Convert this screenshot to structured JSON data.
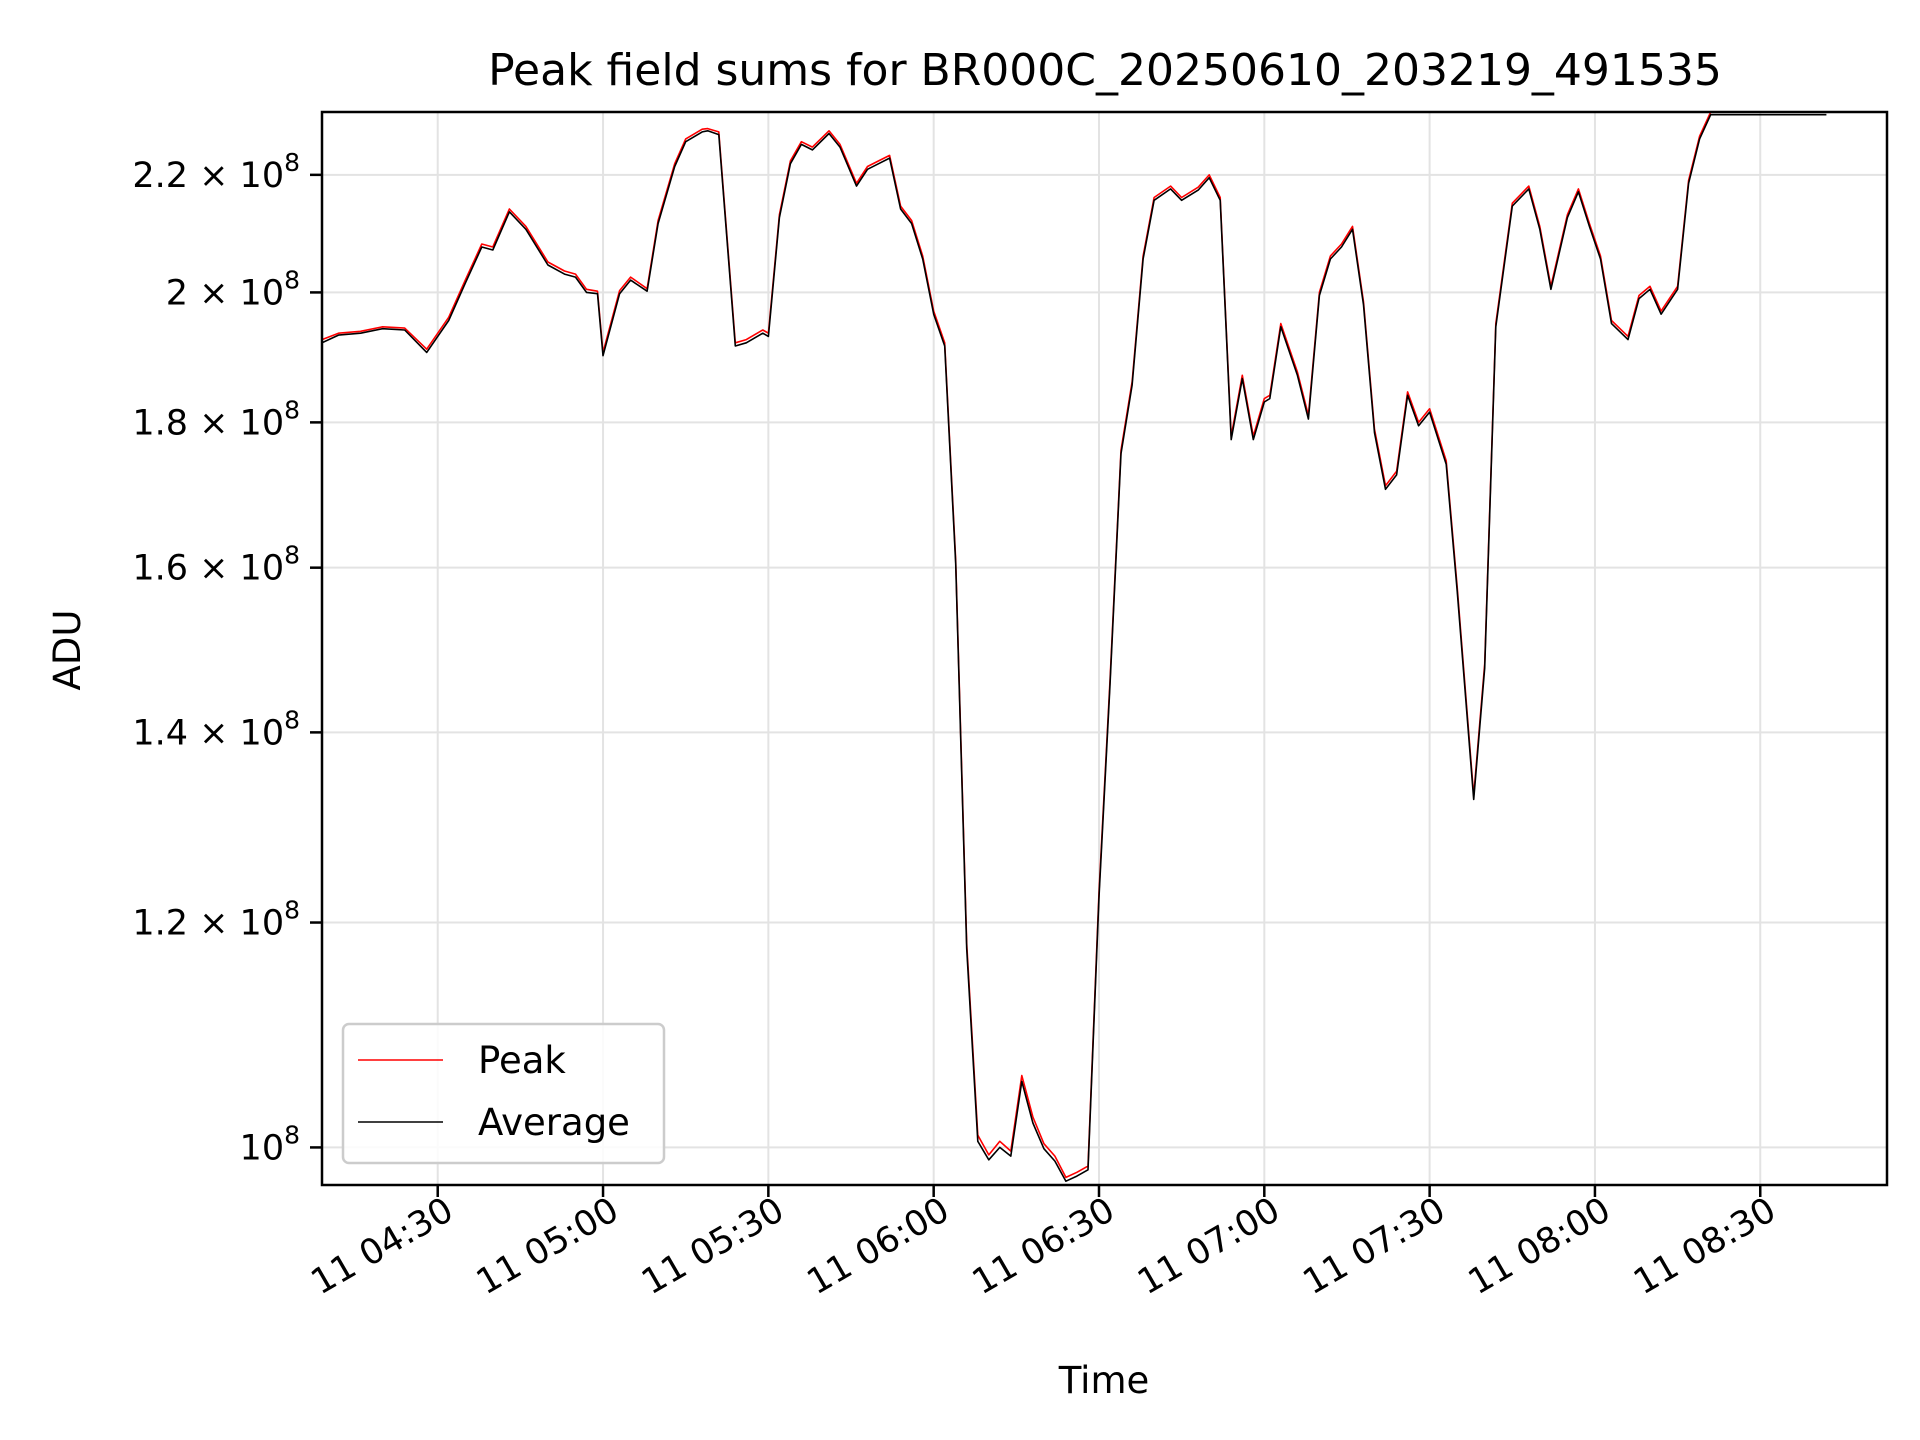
{
  "chart_data": {
    "type": "line",
    "title": "Peak field sums for BR000C_20250610_203219_491535",
    "xlabel": "Time",
    "ylabel": "ADU",
    "yscale": "log",
    "xlim": [
      "11 04:09",
      "11 08:53"
    ],
    "ylim": [
      97000000,
      231500000
    ],
    "grid": true,
    "legend_position": "lower-left",
    "x_ticks": [
      "11 04:30",
      "11 05:00",
      "11 05:30",
      "11 06:00",
      "11 06:30",
      "11 07:00",
      "11 07:30",
      "11 08:00",
      "11 08:30"
    ],
    "y_ticks": [
      {
        "value": 100000000,
        "mantissa": "",
        "exponent": "8"
      },
      {
        "value": 120000000,
        "mantissa": "1.2",
        "exponent": "8"
      },
      {
        "value": 140000000,
        "mantissa": "1.4",
        "exponent": "8"
      },
      {
        "value": 160000000,
        "mantissa": "1.6",
        "exponent": "8"
      },
      {
        "value": 180000000,
        "mantissa": "1.8",
        "exponent": "8"
      },
      {
        "value": 200000000,
        "mantissa": "2",
        "exponent": "8"
      },
      {
        "value": 220000000,
        "mantissa": "2.2",
        "exponent": "8"
      }
    ],
    "x": [
      "11 04:09",
      "11 04:12",
      "11 04:16",
      "11 04:20",
      "11 04:24",
      "11 04:28",
      "11 04:32",
      "11 04:35",
      "11 04:38",
      "11 04:40",
      "11 04:43",
      "11 04:46",
      "11 04:50",
      "11 04:53",
      "11 04:55",
      "11 04:57",
      "11 04:59",
      "11 05:00",
      "11 05:03",
      "11 05:05",
      "11 05:08",
      "11 05:10",
      "11 05:13",
      "11 05:15",
      "11 05:18",
      "11 05:19",
      "11 05:21",
      "11 05:24",
      "11 05:26",
      "11 05:29",
      "11 05:30",
      "11 05:32",
      "11 05:34",
      "11 05:36",
      "11 05:38",
      "11 05:41",
      "11 05:43",
      "11 05:46",
      "11 05:48",
      "11 05:50",
      "11 05:52",
      "11 05:54",
      "11 05:56",
      "11 05:58",
      "11 06:00",
      "11 06:02",
      "11 06:04",
      "11 06:06",
      "11 06:08",
      "11 06:10",
      "11 06:12",
      "11 06:14",
      "11 06:16",
      "11 06:18",
      "11 06:20",
      "11 06:22",
      "11 06:24",
      "11 06:26",
      "11 06:28",
      "11 06:30",
      "11 06:32",
      "11 06:34",
      "11 06:36",
      "11 06:38",
      "11 06:40",
      "11 06:43",
      "11 06:45",
      "11 06:48",
      "11 06:50",
      "11 06:52",
      "11 06:54",
      "11 06:56",
      "11 06:58",
      "11 07:00",
      "11 07:01",
      "11 07:03",
      "11 07:06",
      "11 07:08",
      "11 07:10",
      "11 07:12",
      "11 07:14",
      "11 07:16",
      "11 07:18",
      "11 07:20",
      "11 07:22",
      "11 07:24",
      "11 07:26",
      "11 07:28",
      "11 07:30",
      "11 07:33",
      "11 07:35",
      "11 07:38",
      "11 07:40",
      "11 07:42",
      "11 07:45",
      "11 07:48",
      "11 07:50",
      "11 07:52",
      "11 07:55",
      "11 07:57",
      "11 07:59",
      "11 08:01",
      "11 08:03",
      "11 08:06",
      "11 08:08",
      "11 08:10",
      "11 08:12",
      "11 08:15",
      "11 08:17",
      "11 08:19",
      "11 08:21",
      "11 08:24",
      "11 08:27",
      "11 08:30",
      "11 08:34",
      "11 08:38",
      "11 08:40",
      "11 08:42"
    ],
    "series": [
      {
        "name": "Peak",
        "color": "#ff0000",
        "values": [
          192500000,
          193500000,
          193800000,
          194500000,
          194300000,
          191000000,
          196000000,
          202000000,
          208000000,
          207500000,
          214000000,
          211000000,
          205000000,
          203500000,
          203000000,
          200500000,
          200200000,
          190500000,
          200300000,
          202500000,
          200600000,
          212000000,
          222000000,
          226500000,
          228300000,
          228400000,
          227800000,
          192000000,
          192500000,
          194000000,
          193500000,
          213000000,
          222500000,
          226000000,
          225000000,
          228000000,
          225500000,
          218500000,
          221500000,
          222500000,
          223500000,
          214500000,
          212000000,
          206000000,
          197000000,
          192000000,
          161000000,
          118000000,
          101000000,
          99400000,
          100500000,
          99700000,
          106000000,
          102500000,
          100300000,
          99300000,
          97600000,
          98000000,
          98500000,
          123000000,
          146000000,
          176000000,
          186000000,
          206000000,
          216000000,
          218000000,
          216000000,
          217800000,
          220000000,
          216000000,
          178000000,
          187000000,
          178000000,
          183500000,
          184000000,
          195000000,
          187500000,
          181000000,
          200000000,
          206000000,
          208000000,
          211000000,
          198500000,
          179000000,
          171000000,
          173000000,
          184500000,
          180000000,
          182000000,
          174500000,
          157500000,
          133000000,
          148000000,
          195000000,
          215000000,
          218000000,
          211000000,
          201000000,
          213000000,
          217500000,
          211500000,
          206000000,
          195500000,
          193000000,
          199500000,
          201000000,
          197000000,
          201000000,
          219000000,
          227000000,
          231500000,
          231500000,
          231500000,
          231500000,
          231500000,
          231500000,
          231500000,
          231500000
        ]
      },
      {
        "name": "Average",
        "color": "#000000",
        "values": [
          192000000,
          193200000,
          193500000,
          194200000,
          194000000,
          190500000,
          195500000,
          201500000,
          207500000,
          207000000,
          213500000,
          210500000,
          204500000,
          203000000,
          202500000,
          200000000,
          199800000,
          190000000,
          199800000,
          202000000,
          200200000,
          211500000,
          221500000,
          226000000,
          227800000,
          228000000,
          227300000,
          191500000,
          192000000,
          193500000,
          193000000,
          212500000,
          222000000,
          225500000,
          224500000,
          227500000,
          225000000,
          218000000,
          221000000,
          222000000,
          223000000,
          214000000,
          211500000,
          205500000,
          196500000,
          191500000,
          160500000,
          117500000,
          100500000,
          99000000,
          100000000,
          99300000,
          105500000,
          102000000,
          99900000,
          98900000,
          97300000,
          97700000,
          98200000,
          122500000,
          145500000,
          175500000,
          185500000,
          205500000,
          215500000,
          217500000,
          215500000,
          217300000,
          219500000,
          215500000,
          177500000,
          186500000,
          177500000,
          183000000,
          183500000,
          194500000,
          187000000,
          180500000,
          199500000,
          205500000,
          207500000,
          210500000,
          198000000,
          178500000,
          170500000,
          172500000,
          184000000,
          179500000,
          181500000,
          174000000,
          157000000,
          132600000,
          147500000,
          194500000,
          214500000,
          217500000,
          210500000,
          200500000,
          212500000,
          217000000,
          211000000,
          205500000,
          195000000,
          192500000,
          199000000,
          200500000,
          196500000,
          200500000,
          218500000,
          226500000,
          231000000,
          231000000,
          231000000,
          231000000,
          231000000,
          231000000,
          231000000,
          231000000
        ]
      }
    ]
  }
}
